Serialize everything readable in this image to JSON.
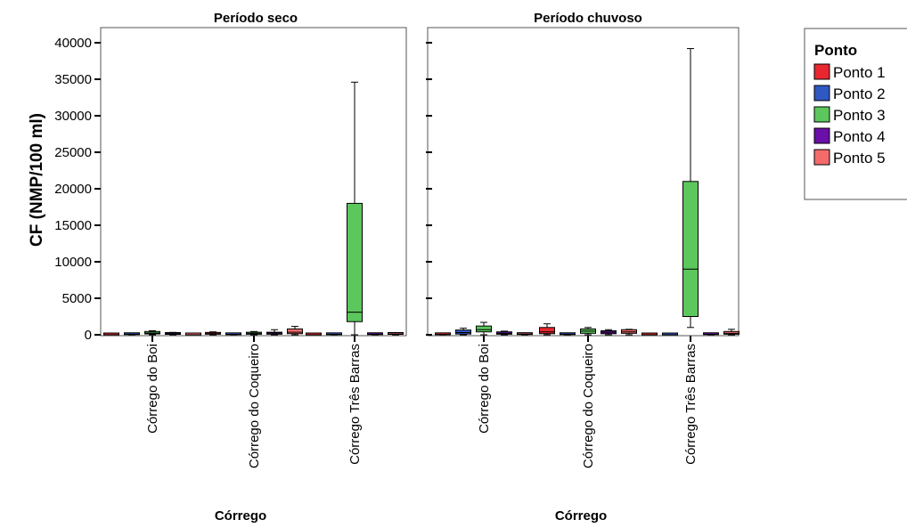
{
  "chart_data": {
    "type": "boxplot",
    "ylabel": "CF (NMP/100 ml)",
    "ylim": [
      0,
      40000
    ],
    "yticks": [
      0,
      5000,
      10000,
      15000,
      20000,
      25000,
      30000,
      35000,
      40000
    ],
    "legend": {
      "title": "Ponto",
      "position": "top-right",
      "items": [
        {
          "name": "Ponto 1",
          "color": "#e8282e"
        },
        {
          "name": "Ponto 2",
          "color": "#2f58c3"
        },
        {
          "name": "Ponto 3",
          "color": "#5cc75c"
        },
        {
          "name": "Ponto 4",
          "color": "#6a0fa8"
        },
        {
          "name": "Ponto 5",
          "color": "#f46b6b"
        }
      ]
    },
    "panels": [
      {
        "title": "Período seco",
        "xlabel": "Córrego",
        "categories": [
          "Córrego do Boi",
          "Córrego do Coqueiro",
          "Córrego Três Barras"
        ],
        "boxes": [
          [
            {
              "min": 0,
              "q1": 0,
              "median": 0,
              "q3": 0,
              "max": 0
            },
            {
              "min": 0,
              "q1": 30,
              "median": 80,
              "q3": 150,
              "max": 200
            },
            {
              "min": 0,
              "q1": 120,
              "median": 250,
              "q3": 450,
              "max": 550
            },
            {
              "min": 0,
              "q1": 60,
              "median": 150,
              "q3": 250,
              "max": 330
            },
            {
              "min": 0,
              "q1": 0,
              "median": 0,
              "q3": 0,
              "max": 0
            }
          ],
          [
            {
              "min": 0,
              "q1": 80,
              "median": 150,
              "q3": 320,
              "max": 400
            },
            {
              "min": 0,
              "q1": 20,
              "median": 60,
              "q3": 100,
              "max": 150
            },
            {
              "min": 0,
              "q1": 80,
              "median": 200,
              "q3": 350,
              "max": 450
            },
            {
              "min": 0,
              "q1": 80,
              "median": 250,
              "q3": 350,
              "max": 700
            },
            {
              "min": 0,
              "q1": 150,
              "median": 350,
              "q3": 800,
              "max": 1150
            }
          ],
          [
            {
              "min": 0,
              "q1": 0,
              "median": 0,
              "q3": 0,
              "max": 0
            },
            {
              "min": 0,
              "q1": 20,
              "median": 60,
              "q3": 100,
              "max": 150
            },
            {
              "min": 0,
              "q1": 1800,
              "median": 3100,
              "q3": 18000,
              "max": 34600
            },
            {
              "min": 0,
              "q1": 30,
              "median": 80,
              "q3": 130,
              "max": 180
            },
            {
              "min": 0,
              "q1": 60,
              "median": 120,
              "q3": 220,
              "max": 300
            }
          ]
        ]
      },
      {
        "title": "Período chuvoso",
        "xlabel": "Córrego",
        "categories": [
          "Córrego do Boi",
          "Córrego do Coqueiro",
          "Córrego Três Barras"
        ],
        "boxes": [
          [
            {
              "min": 0,
              "q1": 20,
              "median": 50,
              "q3": 100,
              "max": 150
            },
            {
              "min": 0,
              "q1": 100,
              "median": 300,
              "q3": 650,
              "max": 900
            },
            {
              "min": 0,
              "q1": 400,
              "median": 700,
              "q3": 1200,
              "max": 1700
            },
            {
              "min": 0,
              "q1": 80,
              "median": 200,
              "q3": 400,
              "max": 500
            },
            {
              "min": 0,
              "q1": 40,
              "median": 100,
              "q3": 200,
              "max": 250
            }
          ],
          [
            {
              "min": 0,
              "q1": 150,
              "median": 400,
              "q3": 1000,
              "max": 1500
            },
            {
              "min": 0,
              "q1": 30,
              "median": 80,
              "q3": 120,
              "max": 180
            },
            {
              "min": 0,
              "q1": 200,
              "median": 500,
              "q3": 800,
              "max": 1000
            },
            {
              "min": 0,
              "q1": 150,
              "median": 350,
              "q3": 550,
              "max": 700
            },
            {
              "min": 0,
              "q1": 200,
              "median": 400,
              "q3": 700,
              "max": 750
            }
          ],
          [
            {
              "min": 0,
              "q1": 0,
              "median": 0,
              "q3": 0,
              "max": 0
            },
            {
              "min": 0,
              "q1": 0,
              "median": 0,
              "q3": 0,
              "max": 0
            },
            {
              "min": 1000,
              "q1": 2500,
              "median": 9000,
              "q3": 21000,
              "max": 39200
            },
            {
              "min": 0,
              "q1": 30,
              "median": 60,
              "q3": 120,
              "max": 180
            },
            {
              "min": 0,
              "q1": 80,
              "median": 200,
              "q3": 450,
              "max": 750
            }
          ]
        ]
      }
    ]
  }
}
